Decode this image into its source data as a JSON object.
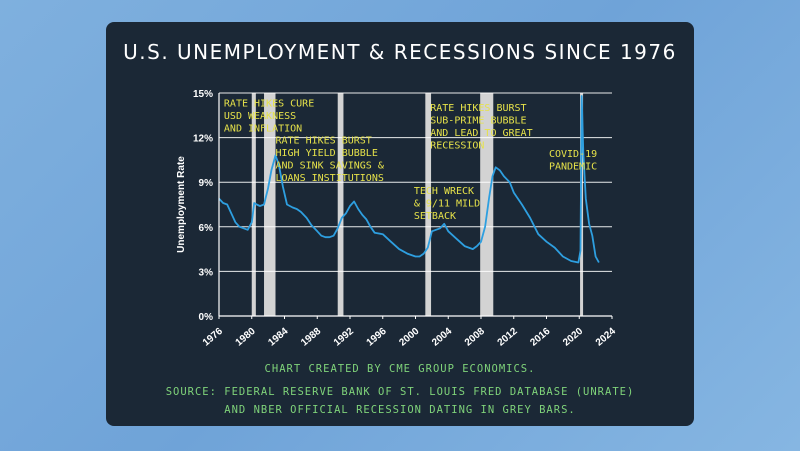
{
  "chart_data": {
    "type": "line",
    "title": "U.S. UNEMPLOYMENT & RECESSIONS SINCE 1976",
    "ylabel": "Unemployment Rate",
    "xlim": [
      1976,
      2024
    ],
    "ylim": [
      0,
      15
    ],
    "x_ticks": [
      1976,
      1980,
      1984,
      1988,
      1992,
      1996,
      2000,
      2004,
      2008,
      2012,
      2016,
      2020,
      2024
    ],
    "y_ticks": [
      0,
      3,
      6,
      9,
      12,
      15
    ],
    "y_tick_labels": [
      "0%",
      "3%",
      "6%",
      "9%",
      "12%",
      "15%"
    ],
    "grid": true,
    "line_color": "#2e9fe0",
    "recession_color": "#d3d3d3",
    "recessions": [
      {
        "start": 1980.0,
        "end": 1980.5
      },
      {
        "start": 1981.5,
        "end": 1982.9
      },
      {
        "start": 1990.5,
        "end": 1991.2
      },
      {
        "start": 2001.2,
        "end": 2001.9
      },
      {
        "start": 2007.9,
        "end": 2009.5
      },
      {
        "start": 2020.1,
        "end": 2020.4
      }
    ],
    "series": [
      {
        "x": [
          1976.0,
          1976.5,
          1977.0,
          1977.5,
          1978.0,
          1978.5,
          1979.0,
          1979.5,
          1980.0,
          1980.3,
          1980.6,
          1981.0,
          1981.5,
          1982.0,
          1982.4,
          1982.9,
          1983.3,
          1983.8,
          1984.3,
          1985.0,
          1985.5,
          1986.0,
          1986.7,
          1987.3,
          1988.0,
          1988.5,
          1989.0,
          1989.5,
          1990.0,
          1990.5,
          1991.0,
          1991.5,
          1992.0,
          1992.5,
          1993.0,
          1993.5,
          1994.0,
          1994.5,
          1995.0,
          1996.0,
          1997.0,
          1998.0,
          1999.0,
          2000.0,
          2000.5,
          2001.0,
          2001.5,
          2002.0,
          2002.5,
          2003.0,
          2003.5,
          2004.0,
          2005.0,
          2006.0,
          2007.0,
          2007.5,
          2008.0,
          2008.5,
          2009.0,
          2009.4,
          2009.8,
          2010.3,
          2010.8,
          2011.5,
          2012.0,
          2013.0,
          2014.0,
          2015.0,
          2016.0,
          2017.0,
          2018.0,
          2019.0,
          2019.9,
          2020.15,
          2020.3,
          2020.5,
          2020.8,
          2021.2,
          2021.6,
          2022.0,
          2022.4
        ],
        "y": [
          7.9,
          7.6,
          7.5,
          6.9,
          6.3,
          6.0,
          5.9,
          5.8,
          6.3,
          7.6,
          7.5,
          7.4,
          7.5,
          8.6,
          9.8,
          10.8,
          10.2,
          8.7,
          7.5,
          7.3,
          7.2,
          7.0,
          6.6,
          6.1,
          5.7,
          5.4,
          5.3,
          5.3,
          5.4,
          5.9,
          6.6,
          6.9,
          7.4,
          7.7,
          7.2,
          6.8,
          6.5,
          6.0,
          5.6,
          5.5,
          5.0,
          4.5,
          4.2,
          4.0,
          4.0,
          4.2,
          4.6,
          5.7,
          5.8,
          5.9,
          6.2,
          5.7,
          5.2,
          4.7,
          4.5,
          4.7,
          5.0,
          6.0,
          8.0,
          9.4,
          10.0,
          9.8,
          9.4,
          9.0,
          8.3,
          7.5,
          6.6,
          5.5,
          5.0,
          4.6,
          4.0,
          3.7,
          3.6,
          4.4,
          14.8,
          11.0,
          7.9,
          6.2,
          5.4,
          4.0,
          3.6
        ]
      }
    ],
    "annotations": [
      {
        "lines": [
          "RATE HIKES CURE",
          "USD WEAKNESS",
          "AND INFLATION"
        ],
        "x": 1976.6,
        "y": 14.1
      },
      {
        "lines": [
          "RATE HIKES BURST",
          "HIGH YIELD BUBBLE",
          "AND SINK SAVINGS &",
          "LOANS INSTITUTIONS"
        ],
        "x": 1982.9,
        "y": 11.6
      },
      {
        "lines": [
          "TECH WRECK",
          "& 9/11 MILD",
          "SETBACK"
        ],
        "x": 1999.8,
        "y": 8.2
      },
      {
        "lines": [
          "RATE HIKES BURST",
          "SUB-PRIME BUBBLE",
          "AND LEAD TO GREAT",
          "RECESSION"
        ],
        "x": 2001.8,
        "y": 13.8
      },
      {
        "lines": [
          "COVID-19",
          "PANDEMIC"
        ],
        "x": 2016.3,
        "y": 10.7
      }
    ]
  },
  "footer": {
    "line1": "CHART CREATED BY CME GROUP ECONOMICS.",
    "line2": "SOURCE: FEDERAL RESERVE BANK OF ST. LOUIS FRED DATABASE (UNRATE)",
    "line3": "AND NBER OFFICIAL RECESSION DATING IN GREY BARS."
  }
}
